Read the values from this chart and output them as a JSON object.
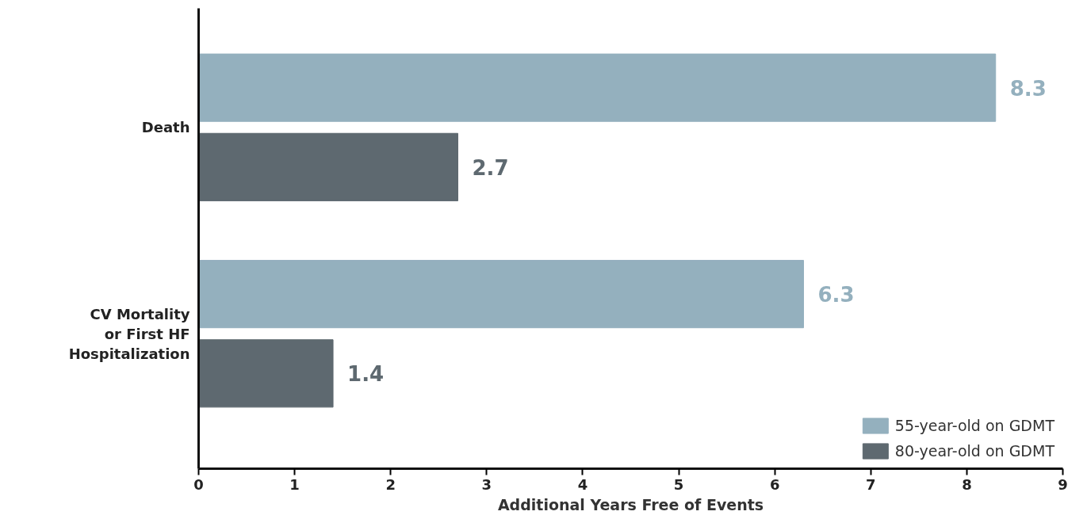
{
  "chart_data": {
    "type": "bar",
    "orientation": "horizontal",
    "xlabel": "Additional Years Free of Events",
    "categories": [
      "Death",
      "CV Mortality or First HF Hospitalization"
    ],
    "series": [
      {
        "name": "55-year-old on GDMT",
        "color": "#94b0be",
        "values": [
          8.3,
          6.3
        ]
      },
      {
        "name": "80-year-old on GDMT",
        "color": "#5e6970",
        "values": [
          2.7,
          1.4
        ]
      }
    ],
    "xlim": [
      0,
      9
    ],
    "xticks": [
      0,
      1,
      2,
      3,
      4,
      5,
      6,
      7,
      8,
      9
    ],
    "grid": false,
    "legend": "bottom right",
    "data_labels": true
  }
}
